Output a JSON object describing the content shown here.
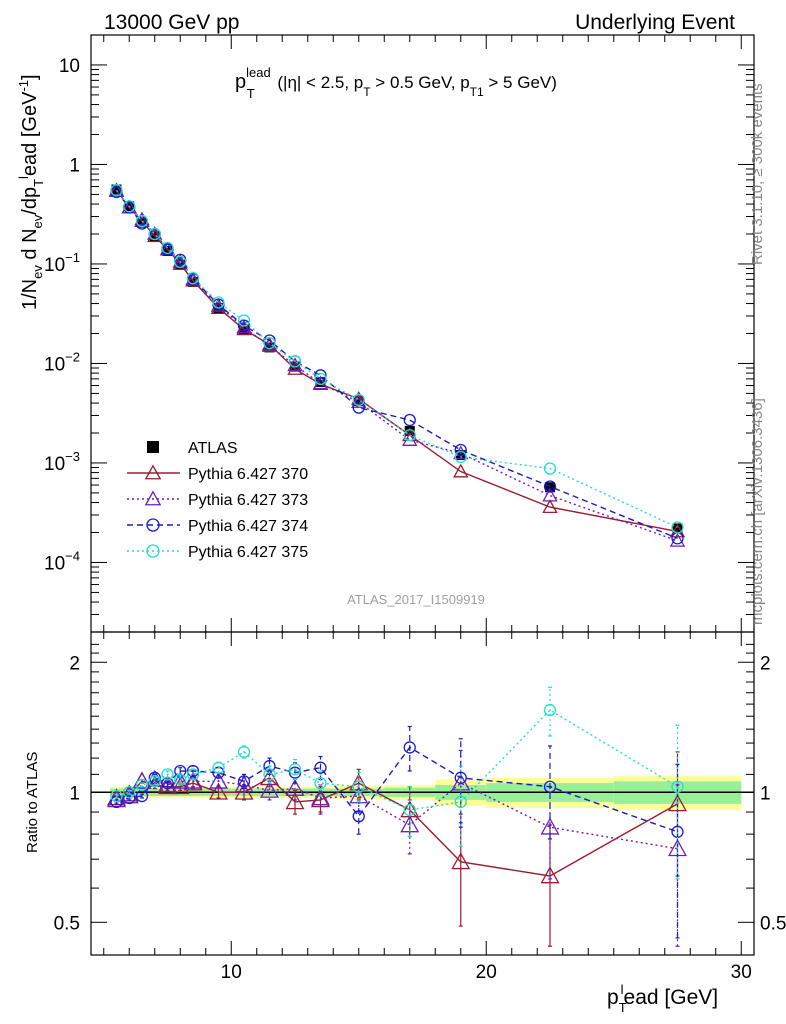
{
  "header": {
    "left": "13000 GeV pp",
    "right": "Underlying Event"
  },
  "side_labels": {
    "rivet": "Rivet 3.1.10, ≥ 300k events",
    "mcplots": "mcplots.cern.ch [arXiv:1306.3436]"
  },
  "watermark": "ATLAS_2017_I1509919",
  "selection": {
    "p": "p",
    "sup": "lead",
    "sub": "T",
    "rest1": " (|η| < 2.5, p",
    "rest_sub1": "T",
    "rest2": " > 0.5 GeV, p",
    "rest_sub2": "T1",
    "rest3": " > 5 GeV)"
  },
  "ylabel_top": {
    "a": "1/N",
    "a_sub": "ev",
    "b": " d N",
    "b_sub": "ev",
    "c": "/dp",
    "c_sub": "T",
    "c_sup": "l",
    "d": "ead [GeV",
    "d_sup": "-1",
    "e": "]"
  },
  "ylabel_bottom": "Ratio to ATLAS",
  "xlabel": {
    "p": "p",
    "sub": "T",
    "sup": "l",
    "rest": "ead [GeV]"
  },
  "chart_data": [
    {
      "type": "line",
      "panel": "main",
      "log_y": true,
      "xlim": [
        4.5,
        30.5
      ],
      "ylim": [
        2e-05,
        20
      ],
      "x_ticks": [
        10,
        20,
        30
      ],
      "y_ticks": [
        {
          "value": 0.0001,
          "base": "10",
          "exp": "−4"
        },
        {
          "value": 0.001,
          "base": "10",
          "exp": "−3"
        },
        {
          "value": 0.01,
          "base": "10",
          "exp": "−2"
        },
        {
          "value": 0.1,
          "base": "10",
          "exp": "−1"
        },
        {
          "value": 1,
          "base": "1",
          "exp": ""
        },
        {
          "value": 10,
          "base": "10",
          "exp": ""
        }
      ],
      "x": [
        5.5,
        6.0,
        6.5,
        7.0,
        7.5,
        8.0,
        8.5,
        9.5,
        10.5,
        11.5,
        12.5,
        13.5,
        15.0,
        17.0,
        19.0,
        22.5,
        27.5
      ],
      "x_err": [
        0.25,
        0.25,
        0.25,
        0.25,
        0.25,
        0.25,
        0.5,
        0.5,
        0.5,
        0.5,
        0.5,
        0.5,
        1.0,
        1.0,
        1.0,
        2.5,
        2.5
      ],
      "series": [
        {
          "name": "ATLAS",
          "style": "square",
          "color": "#000000",
          "values": [
            0.56,
            0.38,
            0.26,
            0.19,
            0.135,
            0.098,
            0.066,
            0.036,
            0.022,
            0.0145,
            0.0093,
            0.0065,
            0.0042,
            0.0021,
            0.0012,
            0.00057,
            0.00022
          ]
        },
        {
          "name": "Pythia 6.427 370",
          "style": "triangle-solid",
          "color": "#9b1b30",
          "values": [
            0.55,
            0.37,
            0.27,
            0.19,
            0.14,
            0.1,
            0.068,
            0.036,
            0.022,
            0.0155,
            0.0088,
            0.0062,
            0.0044,
            0.0019,
            0.00082,
            0.00036,
            0.000205
          ]
        },
        {
          "name": "Pythia 6.427 373",
          "style": "triangle-dotted",
          "color": "#6a1fbf",
          "values": [
            0.54,
            0.37,
            0.28,
            0.2,
            0.14,
            0.105,
            0.07,
            0.038,
            0.023,
            0.015,
            0.0096,
            0.0063,
            0.0041,
            0.0017,
            0.00125,
            0.00047,
            0.000165
          ]
        },
        {
          "name": "Pythia 6.427 374",
          "style": "circle-dashed",
          "color": "#1a1acc",
          "values": [
            0.53,
            0.37,
            0.255,
            0.2,
            0.14,
            0.11,
            0.071,
            0.039,
            0.024,
            0.017,
            0.0105,
            0.0076,
            0.0036,
            0.0027,
            0.00135,
            0.00058,
            0.000175
          ]
        },
        {
          "name": "Pythia 6.427 375",
          "style": "circle-dotted",
          "color": "#22ddc8",
          "values": [
            0.55,
            0.38,
            0.27,
            0.2,
            0.145,
            0.105,
            0.072,
            0.041,
            0.027,
            0.016,
            0.0105,
            0.007,
            0.0043,
            0.0019,
            0.00115,
            0.00088,
            0.000225
          ]
        }
      ]
    },
    {
      "type": "line",
      "panel": "ratio",
      "log_y": true,
      "xlim": [
        4.5,
        30.5
      ],
      "ylim": [
        0.42,
        2.35
      ],
      "x_ticks": [
        10,
        20,
        30
      ],
      "y_ticks": [
        0.5,
        1,
        2
      ],
      "ylabel": "Ratio to ATLAS",
      "x": [
        5.5,
        6.0,
        6.5,
        7.0,
        7.5,
        8.0,
        8.5,
        9.5,
        10.5,
        11.5,
        12.5,
        13.5,
        15.0,
        17.0,
        19.0,
        22.5,
        27.5
      ],
      "band_stat": [
        0.02,
        0.02,
        0.02,
        0.02,
        0.02,
        0.02,
        0.02,
        0.02,
        0.02,
        0.02,
        0.02,
        0.02,
        0.02,
        0.025,
        0.04,
        0.05,
        0.06
      ],
      "band_total": [
        0.03,
        0.03,
        0.03,
        0.03,
        0.03,
        0.03,
        0.03,
        0.03,
        0.03,
        0.03,
        0.03,
        0.03,
        0.035,
        0.04,
        0.07,
        0.08,
        0.09
      ],
      "series": [
        {
          "name": "Pythia 6.427 370",
          "style": "triangle-solid",
          "color": "#9b1b30",
          "values": [
            0.97,
            0.99,
            1.06,
            1.04,
            1.03,
            1.03,
            1.05,
            1.0,
            1.0,
            1.08,
            0.95,
            0.96,
            1.05,
            0.91,
            0.69,
            0.64,
            0.94
          ],
          "err": [
            0.01,
            0.01,
            0.01,
            0.02,
            0.02,
            0.02,
            0.03,
            0.03,
            0.04,
            0.05,
            0.06,
            0.07,
            0.08,
            0.12,
            0.2,
            0.2,
            0.3
          ]
        },
        {
          "name": "Pythia 6.427 373",
          "style": "triangle-dotted",
          "color": "#6a1fbf",
          "values": [
            0.96,
            0.98,
            1.06,
            1.07,
            1.04,
            1.06,
            1.06,
            1.06,
            1.04,
            1.01,
            1.02,
            0.97,
            0.98,
            0.84,
            1.05,
            0.83,
            0.74
          ],
          "err": [
            0.01,
            0.01,
            0.01,
            0.02,
            0.02,
            0.02,
            0.03,
            0.03,
            0.04,
            0.05,
            0.06,
            0.07,
            0.08,
            0.12,
            0.2,
            0.2,
            0.3
          ]
        },
        {
          "name": "Pythia 6.427 374",
          "style": "circle-dashed",
          "color": "#1a1acc",
          "values": [
            0.95,
            0.97,
            0.98,
            1.08,
            1.05,
            1.12,
            1.12,
            1.11,
            1.06,
            1.15,
            1.11,
            1.14,
            0.88,
            1.27,
            1.08,
            1.03,
            0.81
          ],
          "err": [
            0.01,
            0.01,
            0.01,
            0.02,
            0.02,
            0.02,
            0.03,
            0.03,
            0.04,
            0.05,
            0.06,
            0.07,
            0.08,
            0.15,
            0.25,
            0.25,
            0.35
          ]
        },
        {
          "name": "Pythia 6.427 375",
          "style": "circle-dotted",
          "color": "#22ddc8",
          "values": [
            0.98,
            1.0,
            1.04,
            1.06,
            1.1,
            1.07,
            1.1,
            1.14,
            1.24,
            1.1,
            1.13,
            1.05,
            1.03,
            0.91,
            0.95,
            1.55,
            1.03
          ],
          "err": [
            0.01,
            0.01,
            0.01,
            0.02,
            0.02,
            0.02,
            0.03,
            0.03,
            0.04,
            0.05,
            0.06,
            0.07,
            0.08,
            0.12,
            0.2,
            0.2,
            0.4
          ]
        }
      ]
    }
  ]
}
